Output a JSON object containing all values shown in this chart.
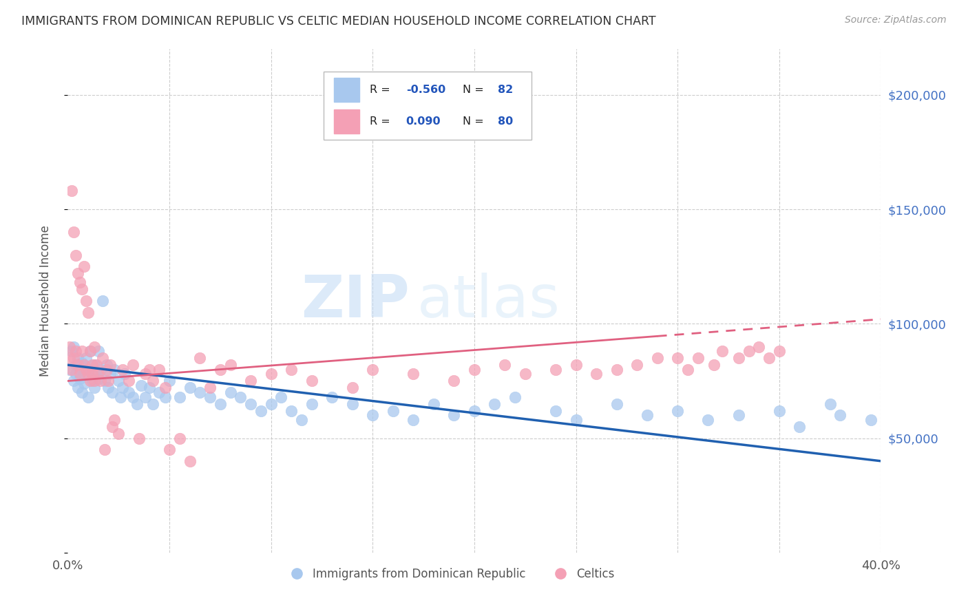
{
  "title": "IMMIGRANTS FROM DOMINICAN REPUBLIC VS CELTIC MEDIAN HOUSEHOLD INCOME CORRELATION CHART",
  "source": "Source: ZipAtlas.com",
  "ylabel": "Median Household Income",
  "xlim": [
    0.0,
    0.4
  ],
  "ylim": [
    0,
    220000
  ],
  "xticks": [
    0.0,
    0.05,
    0.1,
    0.15,
    0.2,
    0.25,
    0.3,
    0.35,
    0.4
  ],
  "yticks": [
    0,
    50000,
    100000,
    150000,
    200000
  ],
  "blue_color": "#A8C8EE",
  "pink_color": "#F4A0B5",
  "blue_line_color": "#2060B0",
  "pink_line_color": "#E06080",
  "watermark_zip": "ZIP",
  "watermark_atlas": "atlas",
  "legend_R_blue": "-0.560",
  "legend_N_blue": "82",
  "legend_R_pink": "0.090",
  "legend_N_pink": "80",
  "legend_label_blue": "Immigrants from Dominican Republic",
  "legend_label_pink": "Celtics",
  "blue_scatter_x": [
    0.001,
    0.002,
    0.003,
    0.003,
    0.004,
    0.004,
    0.005,
    0.005,
    0.006,
    0.006,
    0.007,
    0.007,
    0.008,
    0.008,
    0.009,
    0.01,
    0.01,
    0.011,
    0.012,
    0.013,
    0.013,
    0.014,
    0.015,
    0.015,
    0.016,
    0.017,
    0.018,
    0.019,
    0.02,
    0.021,
    0.022,
    0.023,
    0.025,
    0.026,
    0.027,
    0.028,
    0.03,
    0.032,
    0.034,
    0.036,
    0.038,
    0.04,
    0.042,
    0.045,
    0.048,
    0.05,
    0.055,
    0.06,
    0.065,
    0.07,
    0.075,
    0.08,
    0.085,
    0.09,
    0.095,
    0.1,
    0.105,
    0.11,
    0.115,
    0.12,
    0.13,
    0.14,
    0.15,
    0.16,
    0.17,
    0.18,
    0.19,
    0.2,
    0.21,
    0.22,
    0.24,
    0.25,
    0.27,
    0.285,
    0.3,
    0.315,
    0.33,
    0.35,
    0.36,
    0.375,
    0.38,
    0.395
  ],
  "blue_scatter_y": [
    80000,
    88000,
    75000,
    90000,
    82000,
    78000,
    85000,
    72000,
    80000,
    76000,
    83000,
    70000,
    78000,
    74000,
    85000,
    80000,
    68000,
    88000,
    75000,
    82000,
    72000,
    78000,
    88000,
    76000,
    80000,
    110000,
    75000,
    82000,
    72000,
    78000,
    70000,
    80000,
    75000,
    68000,
    72000,
    78000,
    70000,
    68000,
    65000,
    73000,
    68000,
    72000,
    65000,
    70000,
    68000,
    75000,
    68000,
    72000,
    70000,
    68000,
    65000,
    70000,
    68000,
    65000,
    62000,
    65000,
    68000,
    62000,
    58000,
    65000,
    68000,
    65000,
    60000,
    62000,
    58000,
    65000,
    60000,
    62000,
    65000,
    68000,
    62000,
    58000,
    65000,
    60000,
    62000,
    58000,
    60000,
    62000,
    55000,
    65000,
    60000,
    58000
  ],
  "pink_scatter_x": [
    0.001,
    0.001,
    0.002,
    0.002,
    0.003,
    0.003,
    0.004,
    0.004,
    0.005,
    0.005,
    0.006,
    0.006,
    0.007,
    0.007,
    0.008,
    0.008,
    0.009,
    0.009,
    0.01,
    0.01,
    0.011,
    0.011,
    0.012,
    0.012,
    0.013,
    0.013,
    0.014,
    0.015,
    0.016,
    0.017,
    0.018,
    0.019,
    0.02,
    0.021,
    0.022,
    0.023,
    0.025,
    0.027,
    0.03,
    0.032,
    0.035,
    0.038,
    0.04,
    0.042,
    0.045,
    0.048,
    0.05,
    0.055,
    0.06,
    0.065,
    0.07,
    0.075,
    0.08,
    0.09,
    0.1,
    0.11,
    0.12,
    0.14,
    0.15,
    0.17,
    0.19,
    0.2,
    0.215,
    0.225,
    0.24,
    0.25,
    0.26,
    0.27,
    0.28,
    0.29,
    0.3,
    0.305,
    0.31,
    0.318,
    0.322,
    0.33,
    0.335,
    0.34,
    0.345,
    0.35
  ],
  "pink_scatter_y": [
    85000,
    90000,
    80000,
    158000,
    85000,
    140000,
    88000,
    130000,
    82000,
    122000,
    78000,
    118000,
    88000,
    115000,
    82000,
    125000,
    80000,
    110000,
    78000,
    105000,
    75000,
    88000,
    82000,
    78000,
    75000,
    90000,
    82000,
    78000,
    75000,
    85000,
    45000,
    80000,
    75000,
    82000,
    55000,
    58000,
    52000,
    80000,
    75000,
    82000,
    50000,
    78000,
    80000,
    75000,
    80000,
    72000,
    45000,
    50000,
    40000,
    85000,
    72000,
    80000,
    82000,
    75000,
    78000,
    80000,
    75000,
    72000,
    80000,
    78000,
    75000,
    80000,
    82000,
    78000,
    80000,
    82000,
    78000,
    80000,
    82000,
    85000,
    85000,
    80000,
    85000,
    82000,
    88000,
    85000,
    88000,
    90000,
    85000,
    88000
  ]
}
